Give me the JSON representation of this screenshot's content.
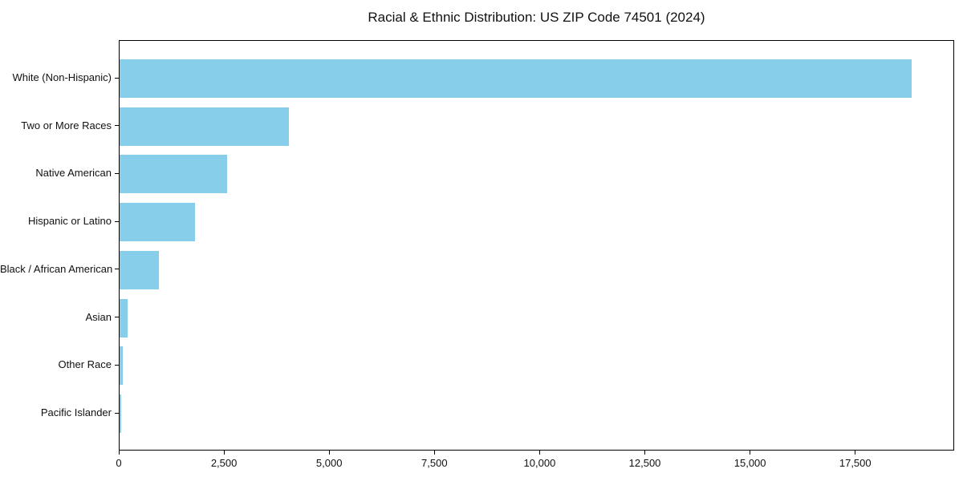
{
  "chart_data": {
    "type": "bar",
    "orientation": "horizontal",
    "title": "Racial & Ethnic Distribution: US ZIP Code 74501 (2024)",
    "categories": [
      "White (Non-Hispanic)",
      "Two or More Races",
      "Native American",
      "Hispanic or Latino",
      "Black / African American",
      "Asian",
      "Other Race",
      "Pacific Islander"
    ],
    "values": [
      18850,
      4040,
      2555,
      1790,
      935,
      190,
      75,
      40
    ],
    "xlabel": "",
    "ylabel": "",
    "xlim": [
      0,
      19850
    ],
    "xtick_values": [
      0,
      2500,
      5000,
      7500,
      10000,
      12500,
      15000,
      17500
    ],
    "xtick_labels": [
      "0",
      "2,500",
      "5,000",
      "7,500",
      "10,000",
      "12,500",
      "15,000",
      "17,500"
    ],
    "bar_color": "#87CEEB",
    "background": "#ffffff",
    "grid": false,
    "legend": null
  }
}
